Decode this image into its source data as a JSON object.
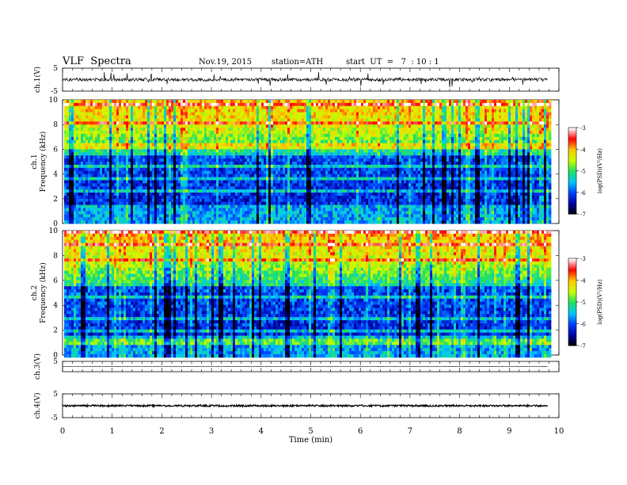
{
  "header": {
    "title": "VLF  Spectra",
    "date": "Nov.19, 2015",
    "station": "station=ATH",
    "start": "start  UT  =   7  : 10 : 1"
  },
  "colors": {
    "colormap": [
      "#000000",
      "#0000a0",
      "#0040ff",
      "#00c8ff",
      "#20e060",
      "#c8ff00",
      "#ffc800",
      "#ff0000",
      "#ffffff"
    ]
  },
  "chart_data": [
    {
      "type": "line",
      "name": "ch1-waveform",
      "ylabel": "ch.1(V)",
      "ylim": [
        -5,
        5
      ],
      "yticks": [
        "5",
        "-5"
      ],
      "baseline": 0
    },
    {
      "type": "heatmap",
      "name": "ch1-spectrogram",
      "ylabel": "Frequency  (kHz)",
      "channel_label": "ch.1",
      "ylim": [
        0,
        10
      ],
      "yticks": [
        "0",
        "2",
        "4",
        "6",
        "8",
        "10"
      ],
      "xlim": [
        0,
        9.8
      ],
      "z_label": "log(PSD)(V²/Hz)",
      "zlim": [
        -7,
        -3
      ],
      "zticks": [
        "-3",
        "-4",
        "-5",
        "-6",
        "-7"
      ]
    },
    {
      "type": "heatmap",
      "name": "ch2-spectrogram",
      "ylabel": "Frequency  (kHz)",
      "channel_label": "ch.2",
      "ylim": [
        0,
        10
      ],
      "yticks": [
        "0",
        "2",
        "4",
        "6",
        "8",
        "10"
      ],
      "xlim": [
        0,
        9.8
      ],
      "z_label": "log(PSD)(V²/Hz)",
      "zlim": [
        -7,
        -3
      ],
      "zticks": [
        "-3",
        "-4",
        "-5",
        "-6",
        "-7"
      ]
    },
    {
      "type": "line",
      "name": "ch3-waveform",
      "ylabel": "ch.3(V)",
      "ylim": [
        -5,
        5
      ],
      "yticks": [
        "5"
      ],
      "baseline": 0
    },
    {
      "type": "line",
      "name": "ch4-waveform",
      "ylabel": "ch.4(V)",
      "ylim": [
        -5,
        5
      ],
      "yticks": [
        "5",
        "-5"
      ],
      "baseline": 0
    }
  ],
  "xaxis": {
    "label": "Time  (min)",
    "ticks": [
      "0",
      "1",
      "2",
      "3",
      "4",
      "5",
      "6",
      "7",
      "8",
      "9",
      "10"
    ],
    "xlim": [
      0,
      10
    ]
  }
}
